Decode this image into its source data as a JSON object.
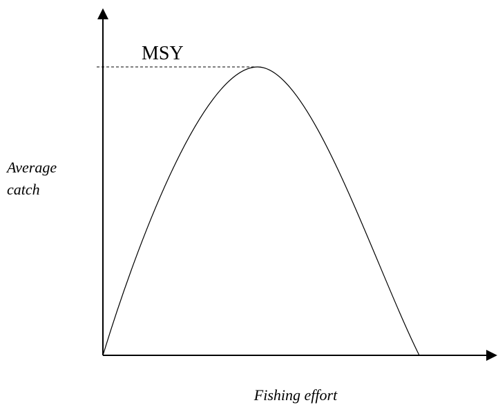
{
  "labels": {
    "peak": "MSY",
    "y_axis": [
      "Average",
      "catch"
    ],
    "x_axis": "Fishing effort"
  }
}
